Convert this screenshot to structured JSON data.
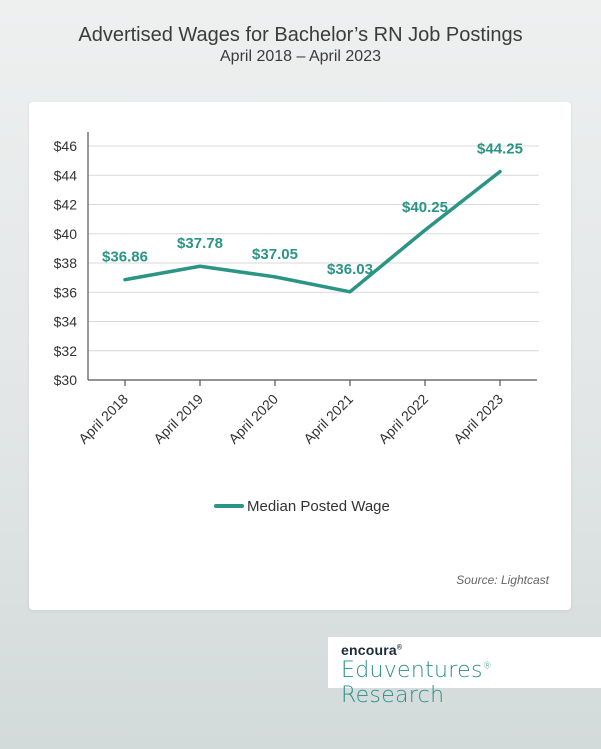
{
  "header": {
    "title": "Advertised Wages for Bachelor’s RN Job Postings",
    "subtitle": "April 2018 – April 2023"
  },
  "source": "Source: Lightcast",
  "logo": {
    "brand": "encoura",
    "brand_mark": "®",
    "product": "Eduventures",
    "product_mark": "®",
    "product_suffix": " Research"
  },
  "colors": {
    "line": "#2a9485",
    "grid": "#d9d9d9",
    "axis": "#555555"
  },
  "chart_data": {
    "type": "line",
    "categories": [
      "April 2018",
      "April 2019",
      "April 2020",
      "April 2021",
      "April 2022",
      "April 2023"
    ],
    "series": [
      {
        "name": "Median Posted Wage",
        "values": [
          36.86,
          37.78,
          37.05,
          36.03,
          40.25,
          44.25
        ],
        "data_labels": [
          "$36.86",
          "$37.78",
          "$37.05",
          "$36.03",
          "$40.25",
          "$44.25"
        ]
      }
    ],
    "ylim": [
      30,
      46
    ],
    "yticks": [
      30,
      32,
      34,
      36,
      38,
      40,
      42,
      44,
      46
    ],
    "ytick_labels": [
      "$30",
      "$32",
      "$34",
      "$36",
      "$38",
      "$40",
      "$42",
      "$44",
      "$46"
    ],
    "grid": true,
    "legend_position": "bottom"
  }
}
